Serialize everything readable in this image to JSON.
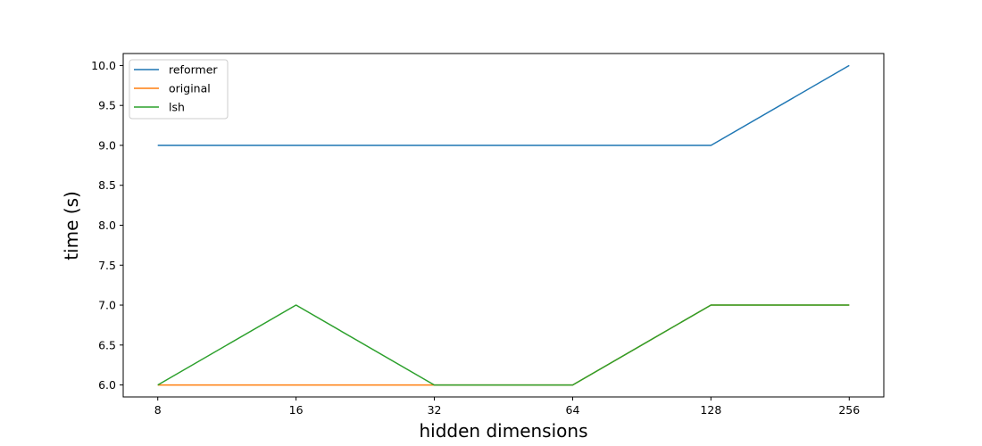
{
  "chart_data": {
    "type": "line",
    "x": [
      8,
      16,
      32,
      64,
      128,
      256
    ],
    "x_scale": "log2",
    "xlabel": "hidden dimensions",
    "ylabel": "time (s)",
    "ylim": [
      5.85,
      10.15
    ],
    "yticks": [
      6.0,
      6.5,
      7.0,
      7.5,
      8.0,
      8.5,
      9.0,
      9.5,
      10.0
    ],
    "ytick_labels": [
      "6.0",
      "6.5",
      "7.0",
      "7.5",
      "8.0",
      "8.5",
      "9.0",
      "9.5",
      "10.0"
    ],
    "xtick_labels": [
      "8",
      "16",
      "32",
      "64",
      "128",
      "256"
    ],
    "grid": false,
    "legend_position": "top-left",
    "series": [
      {
        "name": "reformer",
        "color": "#1f77b4",
        "values": [
          9,
          9,
          9,
          9,
          9,
          10
        ]
      },
      {
        "name": "original",
        "color": "#ff7f0e",
        "values": [
          6,
          6,
          6,
          6,
          7,
          7
        ]
      },
      {
        "name": "lsh",
        "color": "#2ca02c",
        "values": [
          6,
          7,
          6,
          6,
          7,
          7
        ]
      }
    ]
  }
}
